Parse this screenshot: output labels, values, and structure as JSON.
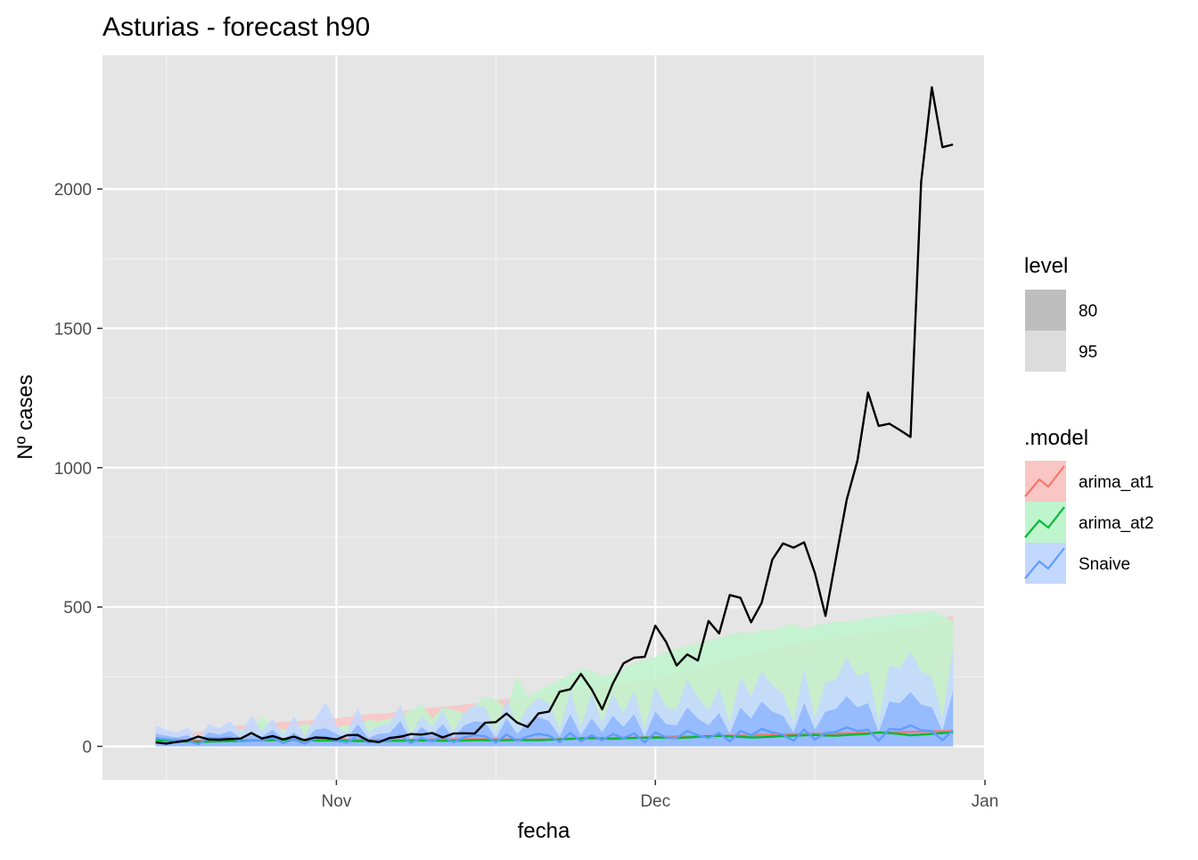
{
  "chart_data": {
    "type": "line",
    "title": "Asturias - forecast h90",
    "xlabel": "fecha",
    "ylabel": "Nº cases",
    "x_start_date": "2020-10-15",
    "x_end_date": "2020-12-28",
    "xlim": [
      "2020-10-10",
      "2021-01-01"
    ],
    "ylim": [
      -120,
      2480
    ],
    "x_ticks": [
      {
        "date": "2020-11-01",
        "label": "Nov"
      },
      {
        "date": "2020-12-01",
        "label": "Dec"
      },
      {
        "date": "2021-01-01",
        "label": "Jan"
      }
    ],
    "y_ticks": [
      0,
      500,
      1000,
      1500,
      2000
    ],
    "grid": true,
    "legend_position": "right",
    "legend_level": {
      "title": "level",
      "items": [
        {
          "label": "80",
          "color": "#bebebe"
        },
        {
          "label": "95",
          "color": "#dcdcdc"
        }
      ]
    },
    "legend_model": {
      "title": ".model",
      "items": [
        {
          "label": "arima_at1",
          "color": "#f8766d",
          "fill": "#f9c6c3"
        },
        {
          "label": "arima_at2",
          "color": "#00ba38",
          "fill": "#bff5cc"
        },
        {
          "label": "Snaive",
          "color": "#619cff",
          "fill": "#c3d8ff"
        }
      ]
    },
    "actual_series": {
      "name": "actual",
      "color": "#000000",
      "values": [
        14,
        10,
        16,
        21,
        35,
        25,
        24,
        26,
        28,
        48,
        28,
        37,
        25,
        35,
        22,
        32,
        30,
        25,
        40,
        41,
        20,
        15,
        30,
        34,
        44,
        42,
        48,
        32,
        46,
        47,
        46,
        85,
        87,
        118,
        85,
        70,
        118,
        125,
        196,
        205,
        260,
        205,
        133,
        225,
        298,
        318,
        321,
        433,
        375,
        290,
        330,
        308,
        450,
        405,
        543,
        533,
        445,
        515,
        670,
        728,
        713,
        732,
        622,
        468,
        678,
        885,
        1025,
        1270,
        1150,
        1158,
        1135,
        1110,
        2025,
        2365,
        2150,
        2160
      ]
    },
    "forecast_models": [
      {
        "name": "arima_at1",
        "color": "#f8766d",
        "mean": [
          25,
          24,
          23,
          22,
          21,
          20,
          20,
          20,
          21,
          21,
          22,
          22,
          23,
          23,
          24,
          24,
          25,
          24,
          24,
          23,
          23,
          22,
          22,
          23,
          23,
          24,
          24,
          25,
          25,
          26,
          26,
          26,
          25,
          25,
          24,
          24,
          25,
          25,
          26,
          27,
          28,
          28,
          29,
          30,
          31,
          31,
          32,
          33,
          34,
          35,
          35,
          36,
          37,
          38,
          38,
          39,
          40,
          41,
          42,
          42,
          43,
          44,
          45,
          45,
          46,
          47,
          48,
          48,
          49,
          50,
          51,
          52,
          53,
          54,
          54,
          55
        ],
        "upper95": [
          50,
          48,
          46,
          45,
          50,
          60,
          65,
          70,
          75,
          80,
          82,
          85,
          88,
          90,
          92,
          95,
          98,
          100,
          105,
          110,
          115,
          118,
          120,
          125,
          130,
          135,
          138,
          142,
          145,
          150,
          155,
          160,
          165,
          170,
          175,
          180,
          185,
          190,
          195,
          200,
          205,
          210,
          215,
          220,
          225,
          230,
          235,
          240,
          250,
          260,
          270,
          280,
          290,
          300,
          310,
          320,
          330,
          340,
          350,
          360,
          370,
          375,
          380,
          385,
          390,
          395,
          400,
          405,
          410,
          415,
          420,
          425,
          430,
          440,
          460,
          470
        ]
      },
      {
        "name": "arima_at2",
        "color": "#00ba38",
        "mean": [
          22,
          20,
          18,
          17,
          16,
          17,
          18,
          19,
          20,
          21,
          22,
          22,
          23,
          23,
          22,
          21,
          21,
          20,
          20,
          19,
          19,
          19,
          20,
          20,
          21,
          21,
          21,
          20,
          20,
          21,
          22,
          22,
          21,
          22,
          23,
          22,
          22,
          24,
          25,
          27,
          29,
          30,
          28,
          27,
          29,
          30,
          31,
          32,
          31,
          30,
          32,
          34,
          36,
          38,
          36,
          34,
          32,
          33,
          35,
          37,
          38,
          40,
          41,
          39,
          38,
          41,
          43,
          45,
          50,
          48,
          44,
          40,
          42,
          45,
          48,
          50
        ],
        "upper95": [
          40,
          38,
          36,
          35,
          36,
          40,
          55,
          65,
          60,
          58,
          110,
          70,
          60,
          65,
          80,
          75,
          70,
          68,
          75,
          80,
          95,
          90,
          100,
          110,
          130,
          150,
          100,
          140,
          130,
          120,
          150,
          180,
          170,
          130,
          250,
          180,
          200,
          220,
          240,
          260,
          280,
          270,
          250,
          260,
          280,
          300,
          310,
          320,
          340,
          350,
          360,
          370,
          380,
          390,
          400,
          410,
          405,
          420,
          415,
          430,
          440,
          420,
          435,
          440,
          450,
          445,
          455,
          460,
          465,
          470,
          475,
          478,
          480,
          485,
          470,
          450
        ]
      },
      {
        "name": "Snaive",
        "color": "#619cff",
        "mean": [
          30,
          25,
          22,
          20,
          8,
          30,
          28,
          32,
          18,
          20,
          22,
          30,
          12,
          25,
          10,
          28,
          32,
          20,
          14,
          38,
          15,
          20,
          22,
          40,
          12,
          30,
          18,
          35,
          15,
          32,
          40,
          36,
          14,
          42,
          20,
          35,
          45,
          38,
          16,
          48,
          18,
          40,
          22,
          44,
          30,
          46,
          15,
          50,
          32,
          30,
          55,
          40,
          30,
          48,
          18,
          55,
          40,
          62,
          50,
          42,
          20,
          60,
          25,
          48,
          52,
          68,
          55,
          60,
          20,
          62,
          60,
          75,
          58,
          55,
          22,
          58
        ],
        "upper80": [
          45,
          38,
          32,
          40,
          18,
          50,
          42,
          55,
          30,
          40,
          35,
          60,
          25,
          50,
          22,
          60,
          65,
          45,
          28,
          80,
          30,
          45,
          48,
          90,
          25,
          70,
          40,
          80,
          30,
          75,
          90,
          85,
          30,
          100,
          45,
          85,
          105,
          90,
          35,
          115,
          40,
          100,
          50,
          110,
          70,
          115,
          35,
          125,
          80,
          75,
          140,
          100,
          75,
          120,
          45,
          140,
          100,
          160,
          125,
          110,
          50,
          155,
          60,
          125,
          135,
          180,
          140,
          155,
          50,
          160,
          155,
          195,
          150,
          140,
          55,
          200
        ],
        "upper95": [
          75,
          60,
          50,
          68,
          28,
          80,
          65,
          90,
          50,
          110,
          55,
          100,
          40,
          110,
          38,
          100,
          160,
          75,
          48,
          140,
          50,
          75,
          80,
          150,
          40,
          110,
          70,
          130,
          50,
          120,
          150,
          140,
          50,
          170,
          75,
          140,
          175,
          155,
          60,
          200,
          70,
          190,
          85,
          190,
          120,
          200,
          60,
          215,
          140,
          130,
          240,
          175,
          130,
          210,
          80,
          250,
          180,
          270,
          220,
          190,
          85,
          280,
          100,
          230,
          240,
          320,
          250,
          270,
          90,
          290,
          280,
          340,
          270,
          250,
          100,
          350
        ]
      }
    ]
  }
}
